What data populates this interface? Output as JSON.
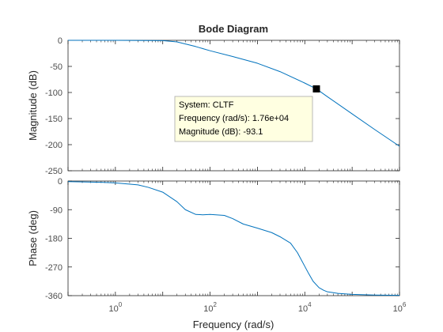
{
  "chart_data": {
    "type": "line",
    "title": "Bode Diagram",
    "xlabel": "Frequency  (rad/s)",
    "x_scale": "log",
    "xlim": [
      0.1,
      1000000
    ],
    "x_ticks": [
      {
        "value": 1,
        "base": "10",
        "exp": "0"
      },
      {
        "value": 100,
        "base": "10",
        "exp": "2"
      },
      {
        "value": 10000,
        "base": "10",
        "exp": "4"
      },
      {
        "value": 1000000,
        "base": "10",
        "exp": "6"
      }
    ],
    "grid": false,
    "line_color": "#0072bd",
    "panels": [
      {
        "id": "magnitude",
        "ylabel": "Magnitude (dB)",
        "ylim": [
          -250,
          0
        ],
        "yticks": [
          0,
          -50,
          -100,
          -150,
          -200,
          -250
        ],
        "series": [
          {
            "x": [
              0.1,
              1,
              10,
              20,
              50,
              100,
              300,
              1000,
              3000,
              10000,
              17600,
              30000,
              100000,
              300000,
              1000000
            ],
            "y": [
              0,
              0,
              -0.5,
              -3,
              -12,
              -20,
              -31,
              -44,
              -60,
              -82,
              -93.1,
              -108,
              -141,
              -171,
              -203
            ]
          }
        ]
      },
      {
        "id": "phase",
        "ylabel": "Phase (deg)",
        "ylim": [
          -360,
          0
        ],
        "yticks": [
          0,
          -90,
          -180,
          -270,
          -360
        ],
        "series": [
          {
            "x": [
              0.1,
              0.5,
              1,
              3,
              5,
              10,
              20,
              30,
              50,
              70,
              100,
              200,
              300,
              500,
              1000,
              2000,
              3000,
              5000,
              7000,
              10000,
              12000,
              15000,
              20000,
              25000,
              30000,
              50000,
              100000,
              300000,
              1000000
            ],
            "y": [
              -2,
              -4,
              -6,
              -12,
              -20,
              -35,
              -65,
              -90,
              -105,
              -106,
              -105,
              -108,
              -118,
              -135,
              -148,
              -162,
              -175,
              -195,
              -225,
              -268,
              -290,
              -315,
              -335,
              -343,
              -348,
              -353,
              -356,
              -358,
              -359
            ]
          }
        ]
      }
    ],
    "datatip": {
      "x": 17600,
      "y": -93.1,
      "lines": [
        "System: CLTF",
        "Frequency (rad/s): 1.76e+04",
        "Magnitude (dB): -93.1"
      ]
    }
  }
}
